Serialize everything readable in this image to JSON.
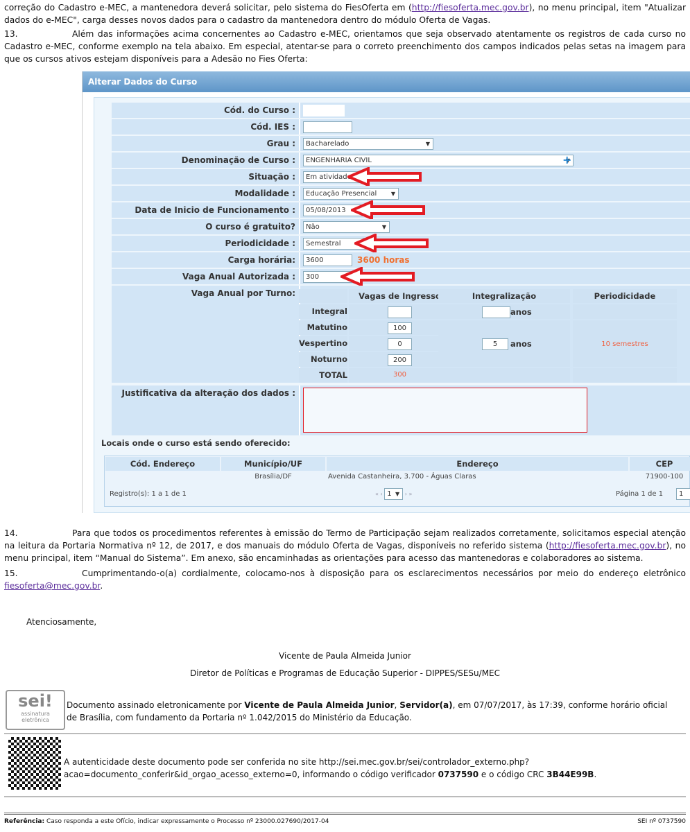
{
  "intro": {
    "p1_a": "correção do Cadastro e-MEC, a mantenedora deverá solicitar, pelo sistema do FiesOferta em (",
    "p1_link": "http://fiesoferta.mec.gov.br",
    "p1_b": "), no menu principal, item \"Atualizar dados do e-MEC\", carga desses novos dados para o cadastro da mantenedora dentro do módulo Oferta de Vagas.",
    "p13_num": "13.",
    "p13": "Além das informações acima concernentes ao Cadastro e-MEC, orientamos que seja observado atentamente os registros de cada curso no Cadastro e-MEC, conforme exemplo na tela abaixo. Em especial, atentar-se para o correto preenchimento dos campos indicados pelas setas na imagem para que os cursos ativos estejam disponíveis para a Adesão no Fies Oferta:"
  },
  "form": {
    "title": "Alterar Dados do Curso",
    "rows": [
      {
        "label": "Cód. do Curso :",
        "value": ""
      },
      {
        "label": "Cód. IES :",
        "value": ""
      },
      {
        "label": "Grau :",
        "value": "Bacharelado"
      },
      {
        "label": "Denominação de Curso :",
        "value": "ENGENHARIA CIVIL"
      },
      {
        "label": "Situação :",
        "value": "Em atividade"
      },
      {
        "label": "Modalidade :",
        "value": "Educação Presencial"
      },
      {
        "label": "Data de Inicio de Funcionamento :",
        "value": "05/08/2013"
      },
      {
        "label": "O curso é gratuito?",
        "value": "Não"
      },
      {
        "label": "Periodicidade :",
        "value": "Semestral"
      },
      {
        "label": "Carga horária:",
        "value": "3600",
        "note": "3600 horas"
      },
      {
        "label": "Vaga Anual Autorizada :",
        "value": "300"
      }
    ],
    "turno": {
      "label": "Vaga Anual por Turno:",
      "headers": [
        "Vagas de Ingresso",
        "Integralização",
        "Periodicidade"
      ],
      "rows": [
        {
          "name": "Integral",
          "vagas": "",
          "anos": "",
          "unit": "anos"
        },
        {
          "name": "Matutino",
          "vagas": "100"
        },
        {
          "name": "Vespertino",
          "vagas": "0",
          "anos": "5",
          "unit": "anos",
          "periodicidade": "10 semestres"
        },
        {
          "name": "Noturno",
          "vagas": "200"
        },
        {
          "name": "TOTAL",
          "vagas": "300"
        }
      ]
    },
    "justificativa_label": "Justificativa da alteração dos dados :",
    "locais_label": "Locais onde o curso está sendo oferecido:",
    "locais": {
      "headers": [
        "Cód. Endereço",
        "Município/UF",
        "Endereço",
        "CEP"
      ],
      "row": [
        "",
        "Brasília/DF",
        "Avenida Castanheira, 3.700 - Águas Claras",
        "71900-100"
      ],
      "registros": "Registro(s): 1 a 1 de 1",
      "page_select": "1",
      "pagina": "Página 1 de 1",
      "page_input": "1"
    },
    "accent": "#e31b23"
  },
  "p14_num": "14.",
  "p14_a": "Para que todos os procedimentos referentes à emissão do Termo de Participação sejam realizados corretamente, solicitamos especial atenção na leitura da Portaria Normativa nº 12, de 2017, e dos manuais do módulo Oferta de Vagas, disponíveis no referido sistema (",
  "p14_link": "http://fiesoferta.mec.gov.br",
  "p14_b": "), no menu principal, item “Manual do Sistema”. Em anexo, são encaminhadas as orientações para acesso das mantenedoras e colaboradores ao sistema.",
  "p15_num": "15.",
  "p15_a": "Cumprimentando-o(a) cordialmente, colocamo-nos à disposição para os esclarecimentos necessários por meio do endereço eletrônico ",
  "p15_link": "fiesoferta@mec.gov.br",
  "p15_b": ".",
  "closing": "Atenciosamente,",
  "signer": "Vicente de Paula Almeida Junior",
  "role": "Diretor de Políticas e Programas de Educação Superior - DIPPES/SESu/MEC",
  "sei": {
    "logo": "sei!",
    "logo_sub": "assinatura eletrônica",
    "a": "Documento assinado eletronicamente por ",
    "name": "Vicente de Paula Almeida Junior",
    "b": ", ",
    "role": "Servidor(a)",
    "c": ", em 07/07/2017, às 17:39, conforme horário oficial de Brasília, com fundamento da Portaria nº 1.042/2015 do Ministério da Educação."
  },
  "auth": {
    "a": "A autenticidade deste documento pode ser conferida no site http://sei.mec.gov.br/sei/controlador_externo.php?",
    "b": "acao=documento_conferir&id_orgao_acesso_externo=0, informando o código verificador ",
    "code": "0737590",
    "c": " e o código CRC ",
    "crc": "3B44E99B",
    "d": "."
  },
  "footer": {
    "ref_label": "Referência:",
    "ref": " Caso responda a este Ofício, indicar expressamente o Processo nº 23000.027690/2017-04",
    "sei_no": "SEI nº 0737590"
  }
}
